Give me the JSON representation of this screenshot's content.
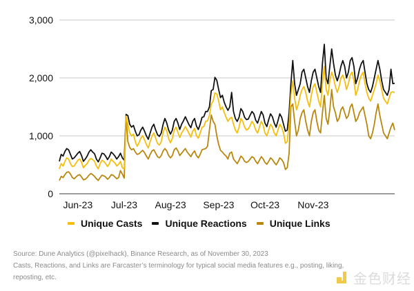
{
  "chart_data": {
    "type": "line",
    "title": "",
    "xlabel": "",
    "ylabel": "",
    "ylim": [
      0,
      3000
    ],
    "yticks": [
      0,
      1000,
      2000,
      3000
    ],
    "ytick_labels": [
      "0",
      "1,000",
      "2,000",
      "3,000"
    ],
    "grid": true,
    "x_range": [
      "2023-05-31",
      "2023-11-30"
    ],
    "xtick_labels": [
      "Jun-23",
      "Jul-23",
      "Aug-23",
      "Sep-23",
      "Oct-23",
      "Nov-23"
    ],
    "xtick_positions_index": [
      10,
      35,
      60,
      86,
      111,
      137
    ],
    "legend_position": "bottom",
    "series": [
      {
        "name": "Unique Casts",
        "color": "#f5be0b",
        "values": [
          430,
          520,
          480,
          560,
          620,
          600,
          520,
          470,
          480,
          530,
          580,
          600,
          540,
          450,
          490,
          520,
          580,
          610,
          590,
          560,
          480,
          430,
          520,
          580,
          560,
          520,
          470,
          520,
          600,
          560,
          530,
          480,
          510,
          560,
          450,
          430,
          1340,
          1200,
          1050,
          1000,
          1030,
          900,
          820,
          880,
          960,
          1000,
          930,
          850,
          790,
          900,
          1000,
          1050,
          960,
          870,
          840,
          900,
          1060,
          1150,
          1080,
          950,
          880,
          960,
          1100,
          1150,
          1060,
          970,
          1050,
          1100,
          1160,
          1100,
          1040,
          980,
          1080,
          1130,
          1000,
          960,
          1050,
          1150,
          1160,
          1250,
          1260,
          1350,
          1550,
          1600,
          1740,
          1720,
          1600,
          1450,
          1500,
          1400,
          1320,
          1250,
          1300,
          1320,
          1200,
          1100,
          1050,
          1150,
          1300,
          1250,
          1150,
          1100,
          1120,
          1180,
          1250,
          1200,
          1100,
          1050,
          1150,
          1250,
          1180,
          1050,
          1000,
          1100,
          1200,
          1150,
          1050,
          1000,
          1100,
          1200,
          1150,
          1050,
          870,
          900,
          1200,
          1700,
          1950,
          1650,
          1450,
          1550,
          1700,
          1800,
          1850,
          1750,
          1600,
          1500,
          1700,
          1850,
          1900,
          1750,
          1600,
          1500,
          1900,
          2200,
          1800,
          1700,
          1950,
          2100,
          2000,
          1850,
          1750,
          1850,
          2000,
          2050,
          1950,
          1800,
          1900,
          2050,
          2100,
          1950,
          1700,
          1800,
          1950,
          2050,
          2100,
          1900,
          1750,
          1650,
          1600,
          1700,
          1800,
          1900,
          2050,
          1950,
          1800,
          1650,
          1600,
          1550,
          1650,
          1750,
          1760,
          1750
        ]
      },
      {
        "name": "Unique Reactions",
        "color": "#111111",
        "values": [
          560,
          680,
          650,
          730,
          780,
          760,
          680,
          600,
          620,
          660,
          700,
          730,
          660,
          560,
          600,
          650,
          720,
          760,
          720,
          690,
          600,
          550,
          620,
          700,
          690,
          650,
          590,
          640,
          720,
          690,
          650,
          600,
          640,
          700,
          620,
          580,
          1370,
          1350,
          1200,
          1150,
          1180,
          1080,
          1000,
          1020,
          1100,
          1150,
          1080,
          1000,
          940,
          1050,
          1150,
          1200,
          1100,
          1020,
          990,
          1050,
          1200,
          1300,
          1220,
          1100,
          1030,
          1100,
          1250,
          1300,
          1220,
          1110,
          1200,
          1260,
          1330,
          1260,
          1190,
          1140,
          1250,
          1300,
          1170,
          1110,
          1200,
          1320,
          1330,
          1420,
          1420,
          1500,
          1780,
          1800,
          2010,
          1960,
          1800,
          1660,
          1700,
          1580,
          1500,
          1440,
          1500,
          1750,
          1420,
          1300,
          1250,
          1320,
          1470,
          1420,
          1320,
          1280,
          1290,
          1360,
          1420,
          1380,
          1270,
          1220,
          1320,
          1420,
          1360,
          1220,
          1160,
          1280,
          1380,
          1330,
          1220,
          1150,
          1260,
          1380,
          1320,
          1200,
          1080,
          1100,
          1400,
          1900,
          2300,
          1900,
          1700,
          1800,
          1900,
          2100,
          2150,
          2000,
          1850,
          1750,
          1950,
          2100,
          2150,
          2000,
          1850,
          1750,
          2250,
          2580,
          2000,
          1900,
          2200,
          2500,
          2250,
          2050,
          1950,
          2050,
          2200,
          2300,
          2200,
          2000,
          2100,
          2300,
          2350,
          2200,
          1900,
          2000,
          2150,
          2250,
          2300,
          2100,
          1900,
          1800,
          1750,
          1850,
          2000,
          2150,
          2300,
          2150,
          1950,
          1800,
          1750,
          1700,
          1800,
          2150,
          1900,
          1910
        ]
      },
      {
        "name": "Unique Links",
        "color": "#b8860b",
        "values": [
          230,
          300,
          280,
          330,
          370,
          380,
          340,
          280,
          260,
          290,
          320,
          330,
          290,
          240,
          250,
          280,
          320,
          350,
          330,
          300,
          260,
          230,
          280,
          320,
          310,
          290,
          250,
          280,
          330,
          320,
          290,
          260,
          280,
          400,
          340,
          270,
          1330,
          900,
          800,
          760,
          780,
          720,
          680,
          690,
          720,
          750,
          710,
          650,
          600,
          680,
          740,
          760,
          700,
          640,
          620,
          660,
          740,
          780,
          740,
          660,
          620,
          660,
          760,
          790,
          740,
          660,
          700,
          740,
          780,
          720,
          680,
          640,
          700,
          740,
          660,
          620,
          680,
          760,
          770,
          780,
          820,
          1100,
          1360,
          1250,
          1200,
          1000,
          850,
          750,
          720,
          680,
          650,
          600,
          700,
          720,
          600,
          560,
          520,
          580,
          650,
          620,
          560,
          540,
          560,
          600,
          640,
          620,
          560,
          520,
          580,
          640,
          600,
          540,
          510,
          560,
          620,
          590,
          540,
          500,
          550,
          620,
          590,
          540,
          420,
          450,
          700,
          1500,
          1550,
          1250,
          1000,
          1100,
          1300,
          1400,
          1450,
          1250,
          1100,
          1000,
          1250,
          1400,
          1450,
          1250,
          1100,
          1050,
          1400,
          1700,
          1300,
          1200,
          1450,
          1800,
          1500,
          1400,
          1250,
          1300,
          1450,
          1500,
          1400,
          1300,
          1350,
          1500,
          1550,
          1400,
          1250,
          1300,
          1400,
          1450,
          1500,
          1350,
          1200,
          1000,
          950,
          1050,
          1200,
          1400,
          1550,
          1350,
          1200,
          1050,
          1000,
          950,
          1050,
          1150,
          1220,
          1100
        ]
      }
    ]
  },
  "legend": {
    "items": [
      {
        "label": "Unique Casts",
        "color": "#f5be0b"
      },
      {
        "label": "Unique Reactions",
        "color": "#111111"
      },
      {
        "label": "Unique Links",
        "color": "#b8860b"
      }
    ]
  },
  "notes": {
    "source": "Source: Dune Analytics (@pixelhack), Binance Research, as of November 30, 2023",
    "definition": "Casts, Reactions, and Links are Farcaster’s terminology for typical social media features e.g., posting, liking,",
    "definition_cont": "reposting, etc."
  },
  "watermark": {
    "text": "金色财经",
    "logo_color": "#f0b90b"
  }
}
